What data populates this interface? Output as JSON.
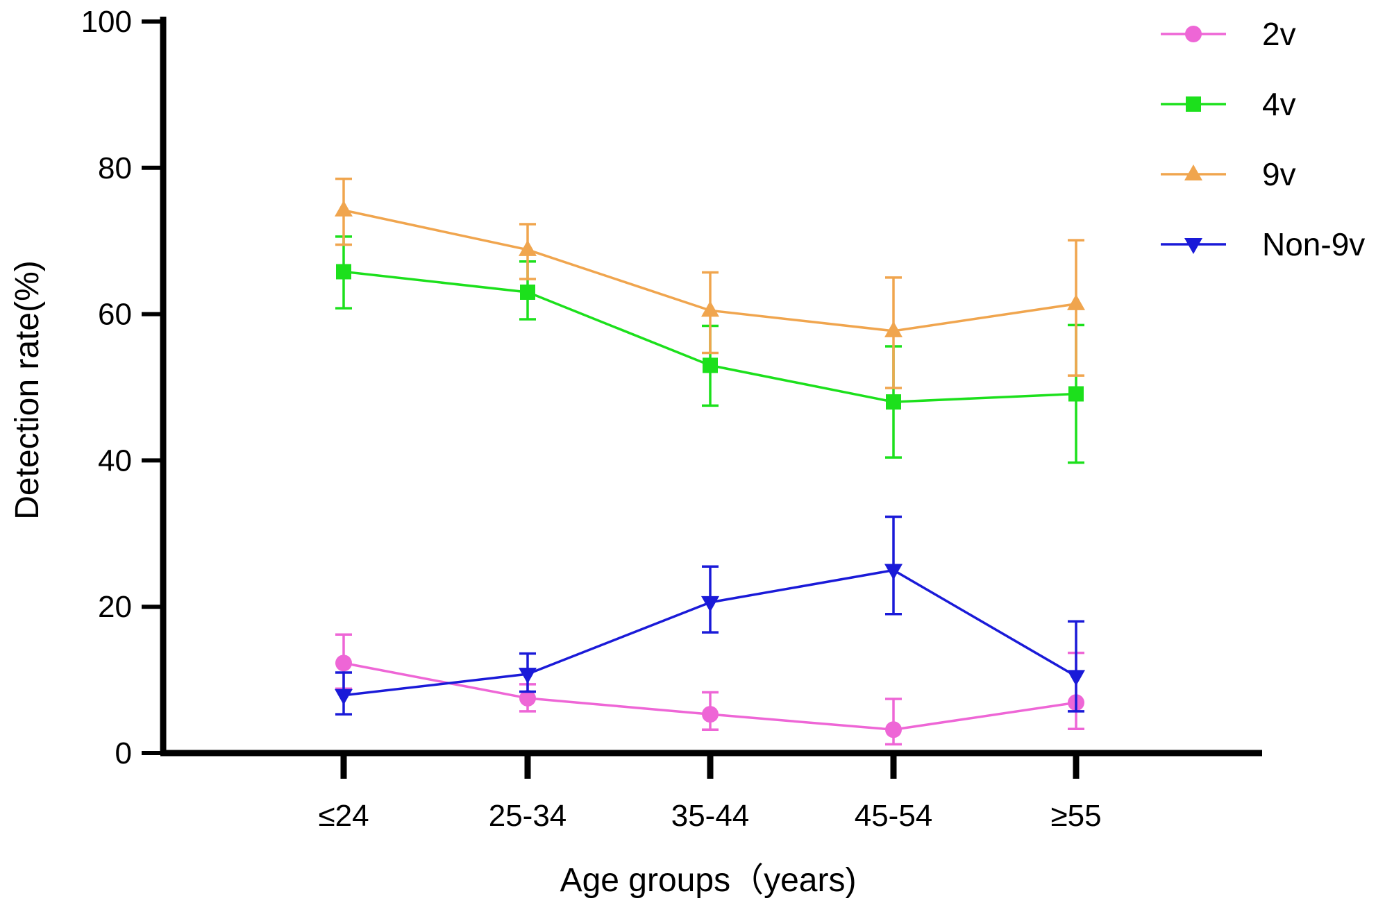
{
  "chart_data": {
    "type": "line",
    "title": "",
    "xlabel": "Age groups（years)",
    "ylabel": "Detection rate(%)",
    "ylim": [
      0,
      100
    ],
    "yticks": [
      "0",
      "20",
      "40",
      "60",
      "80",
      "100"
    ],
    "categories": [
      "≤24",
      "25-34",
      "35-44",
      "45-54",
      "≥55"
    ],
    "legend_position": "top-right",
    "series": [
      {
        "name": "2v",
        "color": "#EE66D6",
        "marker": "circle",
        "values": [
          12.3,
          7.5,
          5.3,
          3.2,
          6.9
        ],
        "err_low": [
          3.5,
          1.8,
          2.1,
          2.0,
          3.6
        ],
        "err_high": [
          3.9,
          1.9,
          3.0,
          4.2,
          6.8
        ]
      },
      {
        "name": "4v",
        "color": "#1CE01C",
        "marker": "square",
        "values": [
          65.8,
          63.0,
          53.0,
          48.0,
          49.1
        ],
        "err_low": [
          5.0,
          3.7,
          5.5,
          7.6,
          9.4
        ],
        "err_high": [
          4.8,
          4.2,
          5.4,
          7.6,
          9.4
        ]
      },
      {
        "name": "9v",
        "color": "#F0A54E",
        "marker": "triangle-up",
        "values": [
          74.2,
          68.8,
          60.5,
          57.7,
          61.4
        ],
        "err_low": [
          4.7,
          4.0,
          5.8,
          7.8,
          9.8
        ],
        "err_high": [
          4.3,
          3.5,
          5.2,
          7.3,
          8.7
        ]
      },
      {
        "name": "Non-9v",
        "color": "#1A1AD8",
        "marker": "triangle-down",
        "values": [
          7.9,
          10.8,
          20.6,
          25.0,
          10.5
        ],
        "err_low": [
          2.6,
          2.4,
          4.1,
          6.0,
          4.8
        ],
        "err_high": [
          3.1,
          2.8,
          4.9,
          7.3,
          7.5
        ]
      }
    ]
  }
}
